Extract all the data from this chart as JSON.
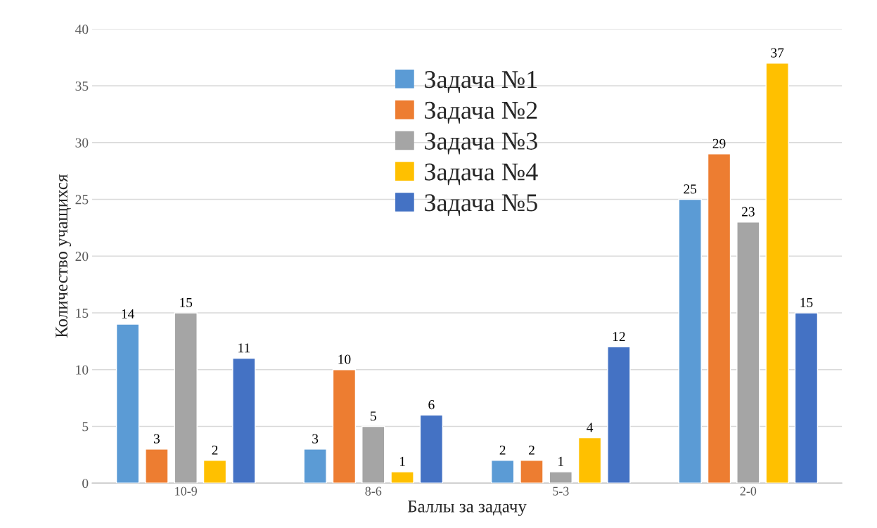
{
  "chart_data": {
    "type": "bar",
    "xlabel": "Баллы за задачу",
    "ylabel": "Количество учащихся",
    "categories": [
      "10-9",
      "8-6",
      "5-3",
      "2-0"
    ],
    "series": [
      {
        "name": "Задача №1",
        "color": "#5b9bd5",
        "values": [
          14,
          3,
          2,
          25
        ]
      },
      {
        "name": "Задача №2",
        "color": "#ed7d31",
        "values": [
          3,
          10,
          2,
          29
        ]
      },
      {
        "name": "Задача №3",
        "color": "#a5a5a5",
        "values": [
          15,
          5,
          1,
          23
        ]
      },
      {
        "name": "Задача №4",
        "color": "#ffc000",
        "values": [
          2,
          1,
          4,
          37
        ]
      },
      {
        "name": "Задача №5",
        "color": "#4472c4",
        "values": [
          11,
          6,
          12,
          15
        ]
      }
    ],
    "ylim": [
      0,
      40
    ],
    "yticks": [
      0,
      5,
      10,
      15,
      20,
      25,
      30,
      35,
      40
    ],
    "grid": "y",
    "legend": "top",
    "data_labels": true
  }
}
